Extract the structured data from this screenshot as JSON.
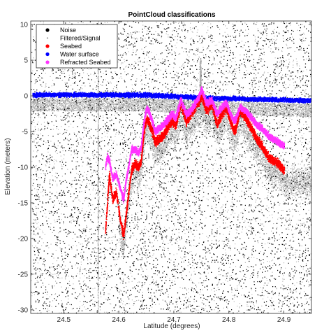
{
  "chart_data": {
    "type": "scatter",
    "title": "PointCloud classifications",
    "xlabel": "Latitude (degrees)",
    "ylabel": "Elevation (meters)",
    "xlim": [
      24.44,
      24.95
    ],
    "ylim": [
      -30.5,
      10.5
    ],
    "xticks": [
      24.5,
      24.6,
      24.7,
      24.8,
      24.9
    ],
    "yticks": [
      10,
      5,
      0,
      -5,
      -10,
      -15,
      -20,
      -25,
      -30
    ],
    "grid": false,
    "legend_position": "top-left",
    "series": [
      {
        "name": "Noise",
        "color": "#000000",
        "marker": "dot",
        "description_values": {
          "x_range": [
            24.44,
            24.95
          ],
          "y_range": [
            -30.5,
            10.5
          ]
        }
      },
      {
        "name": "Filtered/Signal",
        "color": "#aaaaaa",
        "marker": "dot",
        "points": [
          [
            24.56,
            8.0
          ],
          [
            24.562,
            -25.0
          ],
          [
            24.75,
            4.5
          ],
          [
            24.748,
            2.0
          ],
          [
            24.62,
            -5.0
          ],
          [
            24.66,
            -3.5
          ],
          [
            24.7,
            -2.0
          ],
          [
            24.78,
            -2.0
          ],
          [
            24.82,
            -4.0
          ],
          [
            24.86,
            -6.0
          ],
          [
            24.9,
            -8.0
          ],
          [
            24.93,
            -7.0
          ]
        ]
      },
      {
        "name": "Seabed",
        "color": "#ff0000",
        "marker": "dot",
        "points": [
          [
            24.575,
            -19.0
          ],
          [
            24.578,
            -15.5
          ],
          [
            24.582,
            -11.0
          ],
          [
            24.588,
            -14.5
          ],
          [
            24.595,
            -13.5
          ],
          [
            24.602,
            -17.5
          ],
          [
            24.608,
            -19.5
          ],
          [
            24.612,
            -17.0
          ],
          [
            24.618,
            -13.0
          ],
          [
            24.622,
            -10.5
          ],
          [
            24.628,
            -9.5
          ],
          [
            24.635,
            -10.0
          ],
          [
            24.64,
            -9.0
          ],
          [
            24.645,
            -5.0
          ],
          [
            24.65,
            -3.0
          ],
          [
            24.658,
            -4.5
          ],
          [
            24.665,
            -6.5
          ],
          [
            24.672,
            -6.0
          ],
          [
            24.68,
            -5.5
          ],
          [
            24.69,
            -4.0
          ],
          [
            24.696,
            -3.5
          ],
          [
            24.703,
            -4.0
          ],
          [
            24.712,
            -1.0
          ],
          [
            24.722,
            -3.5
          ],
          [
            24.73,
            -2.5
          ],
          [
            24.742,
            -1.0
          ],
          [
            24.75,
            0.0
          ],
          [
            24.758,
            -2.0
          ],
          [
            24.768,
            -1.0
          ],
          [
            24.778,
            -4.0
          ],
          [
            24.786,
            -2.5
          ],
          [
            24.794,
            -1.5
          ],
          [
            24.802,
            -3.5
          ],
          [
            24.81,
            -5.0
          ],
          [
            24.82,
            -2.0
          ],
          [
            24.83,
            -3.0
          ],
          [
            24.84,
            -4.5
          ],
          [
            24.85,
            -6.0
          ],
          [
            24.86,
            -7.0
          ],
          [
            24.87,
            -8.5
          ],
          [
            24.88,
            -9.0
          ],
          [
            24.89,
            -9.5
          ],
          [
            24.9,
            -10.5
          ]
        ]
      },
      {
        "name": "Water surface",
        "color": "#0000ff",
        "marker": "dot",
        "points": [
          [
            24.45,
            0.2
          ],
          [
            24.5,
            0.2
          ],
          [
            24.55,
            0.2
          ],
          [
            24.6,
            0.2
          ],
          [
            24.65,
            0.2
          ],
          [
            24.7,
            0.0
          ],
          [
            24.75,
            -0.2
          ],
          [
            24.8,
            -0.3
          ],
          [
            24.85,
            -0.4
          ],
          [
            24.9,
            -0.5
          ],
          [
            24.94,
            -0.6
          ]
        ]
      },
      {
        "name": "Refracted Seabed",
        "color": "#ff33ff",
        "marker": "dot",
        "points": [
          [
            24.575,
            -10.0
          ],
          [
            24.578,
            -8.5
          ],
          [
            24.582,
            -9.0
          ],
          [
            24.588,
            -11.5
          ],
          [
            24.595,
            -11.0
          ],
          [
            24.602,
            -13.0
          ],
          [
            24.608,
            -14.5
          ],
          [
            24.612,
            -12.0
          ],
          [
            24.618,
            -9.5
          ],
          [
            24.622,
            -7.5
          ],
          [
            24.628,
            -7.5
          ],
          [
            24.635,
            -8.0
          ],
          [
            24.64,
            -7.0
          ],
          [
            24.645,
            -3.5
          ],
          [
            24.65,
            -1.5
          ],
          [
            24.658,
            -3.0
          ],
          [
            24.665,
            -5.0
          ],
          [
            24.672,
            -4.5
          ],
          [
            24.68,
            -4.0
          ],
          [
            24.69,
            -3.0
          ],
          [
            24.696,
            -2.5
          ],
          [
            24.703,
            -3.0
          ],
          [
            24.712,
            -0.5
          ],
          [
            24.722,
            -2.5
          ],
          [
            24.73,
            -2.0
          ],
          [
            24.742,
            -0.5
          ],
          [
            24.75,
            1.0
          ],
          [
            24.758,
            -1.0
          ],
          [
            24.768,
            -0.5
          ],
          [
            24.778,
            -2.5
          ],
          [
            24.786,
            -1.5
          ],
          [
            24.794,
            -0.8
          ],
          [
            24.802,
            -2.5
          ],
          [
            24.81,
            -3.5
          ],
          [
            24.82,
            -1.5
          ],
          [
            24.83,
            -2.0
          ],
          [
            24.84,
            -3.0
          ],
          [
            24.85,
            -4.0
          ],
          [
            24.86,
            -4.5
          ],
          [
            24.87,
            -5.5
          ],
          [
            24.88,
            -6.0
          ],
          [
            24.89,
            -6.5
          ],
          [
            24.9,
            -7.0
          ]
        ]
      }
    ]
  }
}
